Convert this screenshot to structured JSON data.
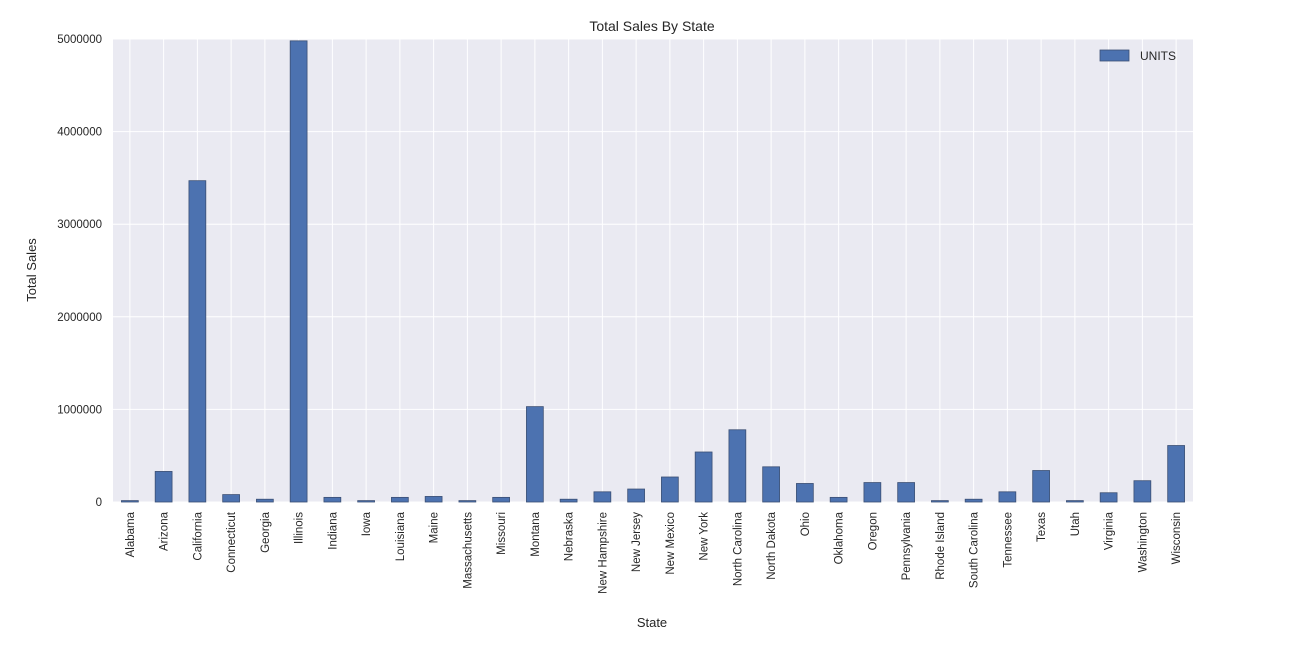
{
  "chart_data": {
    "type": "bar",
    "title": "Total Sales By State",
    "xlabel": "State",
    "ylabel": "Total Sales",
    "ylim": [
      0,
      5000000
    ],
    "yticks": [
      0,
      1000000,
      2000000,
      3000000,
      4000000,
      5000000
    ],
    "ytick_labels": [
      "0",
      "1000000",
      "2000000",
      "3000000",
      "4000000",
      "5000000"
    ],
    "grid": true,
    "legend_position": "top-right",
    "categories": [
      "Alabama",
      "Arizona",
      "California",
      "Connecticut",
      "Georgia",
      "Illinois",
      "Indiana",
      "Iowa",
      "Louisiana",
      "Maine",
      "Massachusetts",
      "Missouri",
      "Montana",
      "Nebraska",
      "New Hampshire",
      "New Jersey",
      "New Mexico",
      "New York",
      "North Carolina",
      "North Dakota",
      "Ohio",
      "Oklahoma",
      "Oregon",
      "Pennsylvania",
      "Rhode Island",
      "South Carolina",
      "Tennessee",
      "Texas",
      "Utah",
      "Virginia",
      "Washington",
      "Wisconsin"
    ],
    "series": [
      {
        "name": "UNITS",
        "color": "#4c72b0",
        "values": [
          15000,
          330000,
          3470000,
          80000,
          30000,
          4980000,
          50000,
          15000,
          50000,
          60000,
          15000,
          50000,
          1030000,
          30000,
          110000,
          140000,
          270000,
          540000,
          780000,
          380000,
          200000,
          50000,
          210000,
          210000,
          15000,
          30000,
          110000,
          340000,
          15000,
          100000,
          230000,
          610000
        ]
      }
    ]
  },
  "colors": {
    "plot_background": "#eaeaf2",
    "grid": "#ffffff",
    "bar": "#4c72b0",
    "bar_edge": "#3b4f74"
  }
}
